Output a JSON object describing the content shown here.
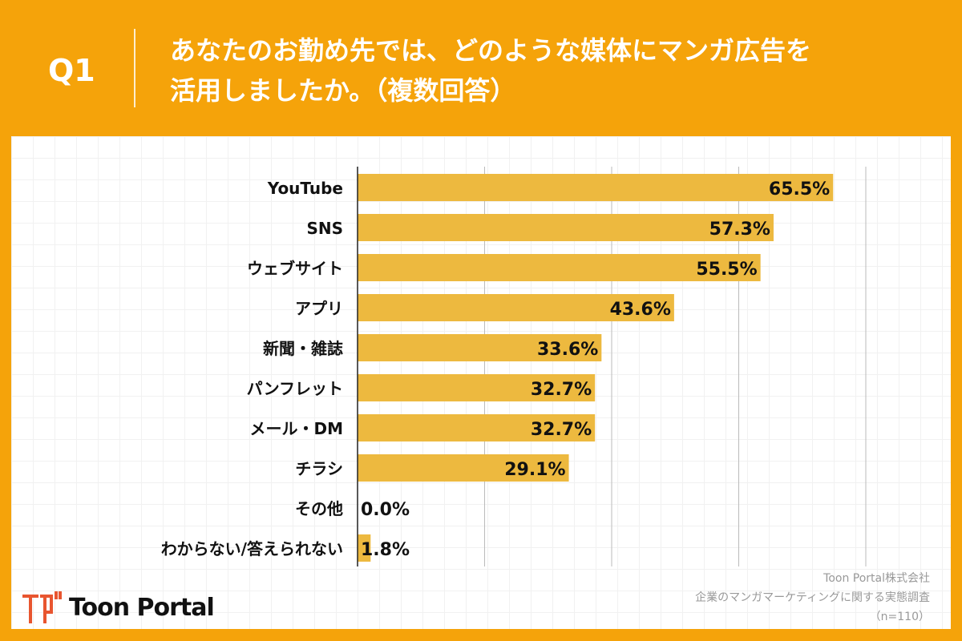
{
  "header": {
    "q": "Q1",
    "title_line1": "あなたのお勤め先では、どのような媒体にマンガ広告を",
    "title_line2": "活用しましたか。（複数回答）"
  },
  "chart_data": {
    "type": "bar",
    "orientation": "horizontal",
    "categories": [
      "YouTube",
      "SNS",
      "ウェブサイト",
      "アプリ",
      "新聞・雑誌",
      "パンフレット",
      "メール・DM",
      "チラシ",
      "その他",
      "わからない/答えられない"
    ],
    "values": [
      65.5,
      57.3,
      55.5,
      43.6,
      33.6,
      32.7,
      32.7,
      29.1,
      0.0,
      1.8
    ],
    "labels": [
      "65.5%",
      "57.3%",
      "55.5%",
      "43.6%",
      "33.6%",
      "32.7%",
      "32.7%",
      "29.1%",
      "0.0%",
      "1.8%"
    ],
    "xlim": [
      0,
      70
    ],
    "grid_step": 17.5,
    "grid": true,
    "bar_color": "#EDB93F"
  },
  "footer": {
    "source1": "Toon Portal株式会社",
    "source2": "企業のマンガマーケティングに関する実態調査",
    "n": "（n=110）",
    "logo_text": "Toon Portal"
  },
  "colors": {
    "background": "#F5A30A",
    "bar": "#EDB93F",
    "logo_mark": "#E8552F"
  }
}
